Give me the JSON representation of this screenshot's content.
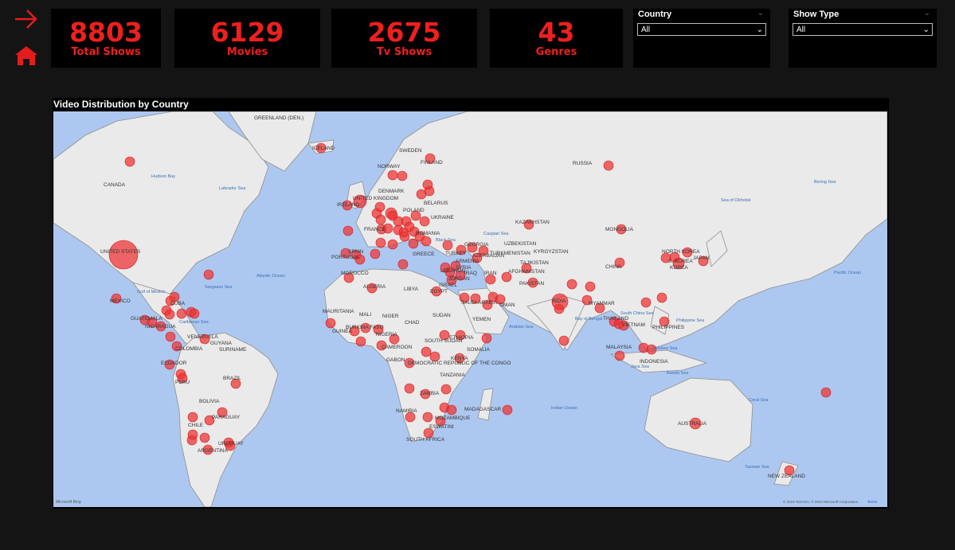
{
  "nav": {
    "next_icon": "arrow-right-icon",
    "home_icon": "home-icon"
  },
  "kpis": [
    {
      "value": "8803",
      "label": "Total Shows"
    },
    {
      "value": "6129",
      "label": "Movies"
    },
    {
      "value": "2675",
      "label": "Tv Shows"
    },
    {
      "value": "43",
      "label": "Genres"
    }
  ],
  "filters": {
    "country": {
      "title": "Country",
      "selected": "All"
    },
    "show_type": {
      "title": "Show Type",
      "selected": "All"
    }
  },
  "map": {
    "title": "Video Distribution by Country",
    "brand": "Microsoft Bing",
    "copyright": "© 2023 TomTom, © 2023 Microsoft Corporation",
    "terms": "Terms",
    "countries": [
      "UNITED STATES",
      "CANADA",
      "MEXICO",
      "CUBA",
      "GUATEMALA",
      "NICARAGUA",
      "VENEZUELA",
      "GUYANA",
      "SURINAME",
      "COLOMBIA",
      "ECUADOR",
      "PERU",
      "BRAZIL",
      "BOLIVIA",
      "PARAGUAY",
      "CHILE",
      "ARGENTINA",
      "URUGUAY",
      "GREENLAND (DEN.)",
      "ICELAND",
      "SWEDEN",
      "FINLAND",
      "NORWAY",
      "DENMARK",
      "UNITED KINGDOM",
      "IRELAND",
      "BELARUS",
      "POLAND",
      "UKRAINE",
      "FRANCE",
      "ROMANIA",
      "PORTUGAL",
      "SPAIN",
      "GREECE",
      "TURKEY",
      "MOROCCO",
      "ALGERIA",
      "LIBYA",
      "EGYPT",
      "MAURITANIA",
      "MALI",
      "NIGER",
      "CHAD",
      "SUDAN",
      "BURKINA FASO",
      "GUINEA",
      "NIGERIA",
      "CAMEROON",
      "GABON",
      "SOUTH SUDAN",
      "ETHIOPIA",
      "SOMALIA",
      "KENYA",
      "DEMOCRATIC REPUBLIC OF THE CONGO",
      "TANZANIA",
      "ZAMBIA",
      "NAMIBIA",
      "MOZAMBIQUE",
      "MADAGASCAR",
      "ESWATINI",
      "SOUTH AFRICA",
      "SAUDI ARABIA",
      "YEMEN",
      "OMAN",
      "RUSSIA",
      "KAZAKHSTAN",
      "UZBEKISTAN",
      "TURKMENISTAN",
      "AFGHANISTAN",
      "PAKISTAN",
      "INDIA",
      "MYANMAR",
      "THAILAND",
      "VIETNAM",
      "MALAYSIA",
      "INDONESIA",
      "PHILIPPINES",
      "CHINA",
      "MONGOLIA",
      "NORTH KOREA",
      "S. KOREA",
      "JAPAN",
      "AUSTRALIA",
      "NEW ZEALAND",
      "KYRGYZSTAN",
      "TAJIKISTAN",
      "GEORGIA",
      "ARMENIA",
      "AZERBAIJAN",
      "IRAN",
      "IRAQ",
      "JORDAN",
      "ISRAEL",
      "LEBANON",
      "SYRIA",
      "KOREA"
    ],
    "seas": [
      "Hudson Bay",
      "Labrador Sea",
      "Sargasso Sea",
      "Gulf of Mexico",
      "Caribbean Sea",
      "Atlantic Ocean",
      "Black Sea",
      "Arabian Sea",
      "Bay of Bengal",
      "South China Sea",
      "Philippine Sea",
      "Celebes Sea",
      "Banda Sea",
      "Java Sea",
      "Coral Sea",
      "Tasman Sea",
      "Indian Ocean",
      "Pacific Ocean",
      "Sea of Okhotsk",
      "Bering Sea",
      "Caspian Sea"
    ]
  }
}
